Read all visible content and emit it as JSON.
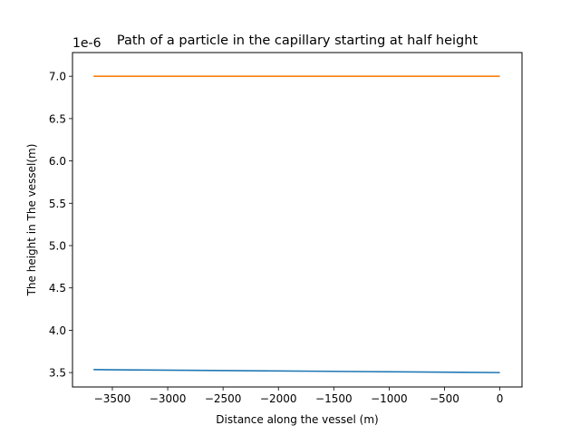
{
  "chart_data": {
    "type": "line",
    "title": "Path of a particle in the capillary starting at half height",
    "xlabel": "Distance along the vessel (m)",
    "ylabel": "The height in The vessel(m)",
    "y_offset_label": "1e-6",
    "xlim": [
      -3860,
      200
    ],
    "ylim": [
      3.33,
      7.28
    ],
    "x_ticks": [
      -3500,
      -3000,
      -2500,
      -2000,
      -1500,
      -1000,
      -500,
      0
    ],
    "x_tick_labels": [
      "−3500",
      "−3000",
      "−2500",
      "−2000",
      "−1500",
      "−1000",
      "−500",
      "0"
    ],
    "y_ticks": [
      3.5,
      4.0,
      4.5,
      5.0,
      5.5,
      6.0,
      6.5,
      7.0
    ],
    "y_tick_labels": [
      "3.5",
      "4.0",
      "4.5",
      "5.0",
      "5.5",
      "6.0",
      "6.5",
      "7.0"
    ],
    "grid": false,
    "series": [
      {
        "color": "#1f77b4",
        "x": [
          -3670,
          0
        ],
        "y": [
          3.535,
          3.5
        ]
      },
      {
        "color": "#ff7f0e",
        "x": [
          -3670,
          0
        ],
        "y": [
          7.0,
          7.0
        ]
      }
    ]
  }
}
